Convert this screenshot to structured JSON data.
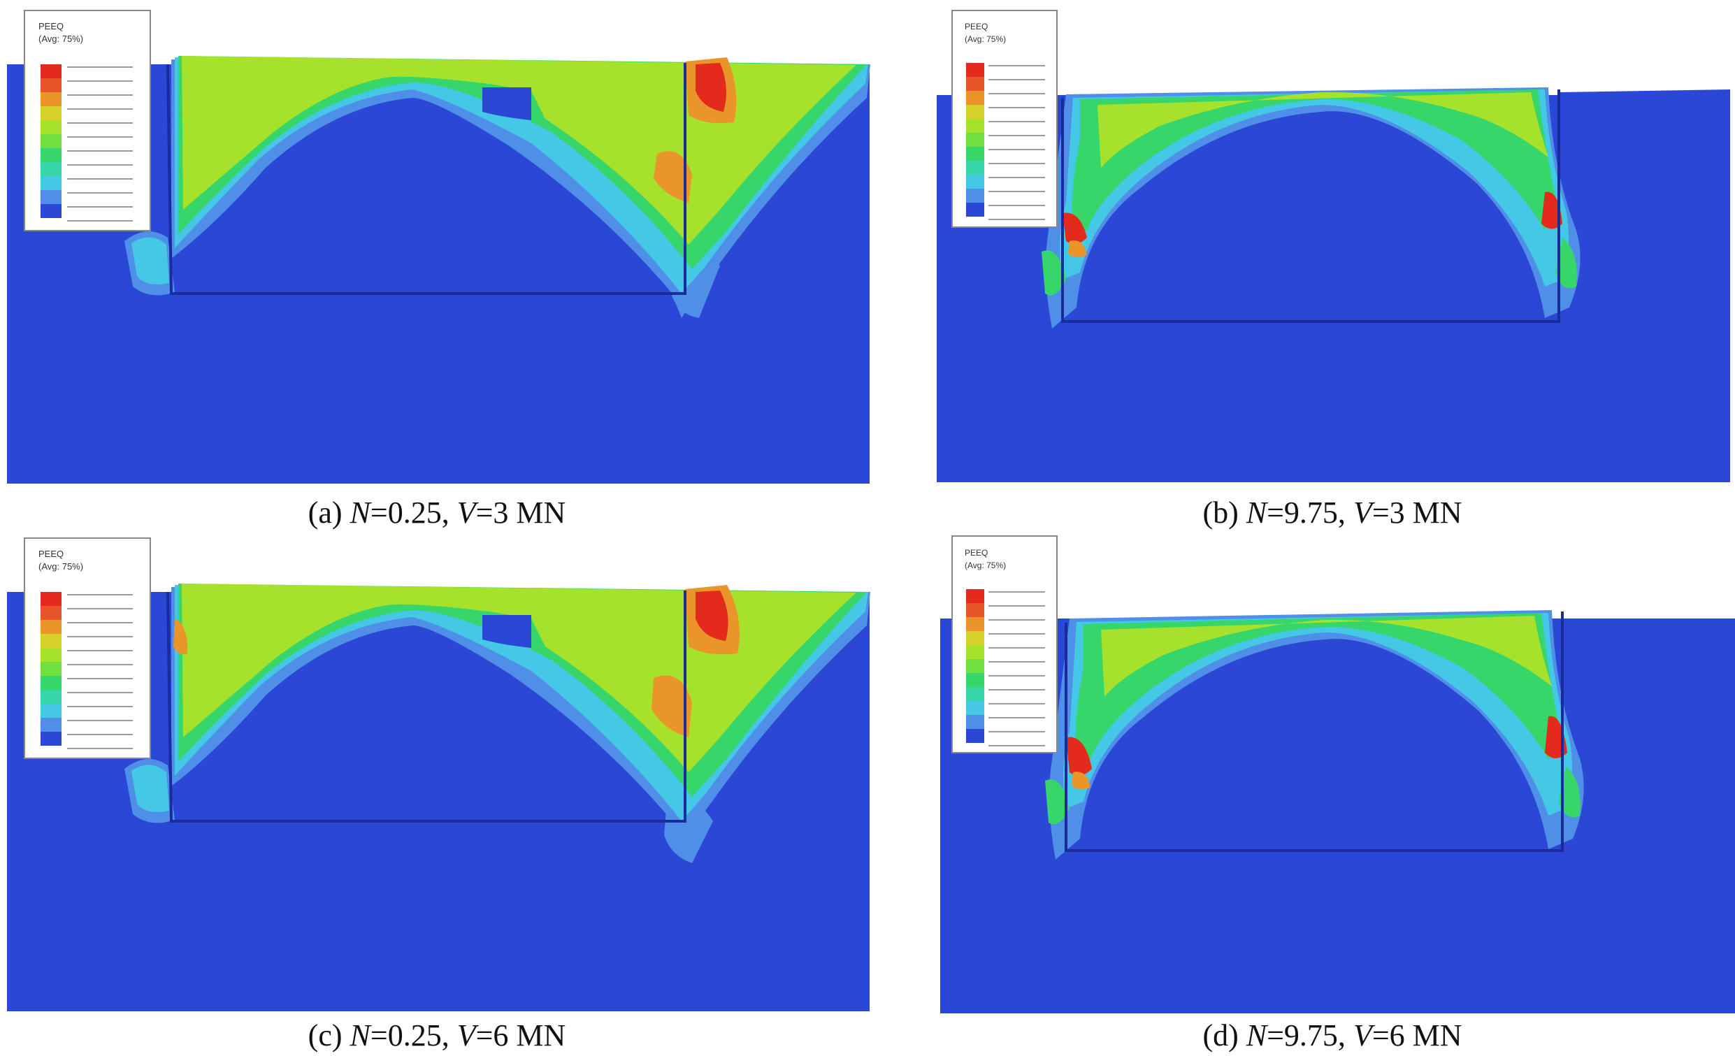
{
  "colors": {
    "soil_blue": "#2a47d6",
    "band_light_blue": "#4f8fe8",
    "band_cyan": "#44c8e6",
    "band_green": "#36d66a",
    "band_yellow_green": "#a6e22c",
    "band_orange": "#e9952a",
    "band_red": "#e32a1c"
  },
  "legend": {
    "heading_line1": "PEEQ",
    "heading_line2": "(Avg: 75%)"
  },
  "panels": [
    {
      "id": "a",
      "letter": "(a)",
      "n_label": "N",
      "n_value": "=0.25, ",
      "v_label": "V",
      "v_value": "=3 MN"
    },
    {
      "id": "b",
      "letter": "(b)",
      "n_label": "N",
      "n_value": "=9.75, ",
      "v_label": "V",
      "v_value": "=3 MN"
    },
    {
      "id": "c",
      "letter": "(c)",
      "n_label": "N",
      "n_value": "=0.25, ",
      "v_label": "V",
      "v_value": "=6 MN"
    },
    {
      "id": "d",
      "letter": "(d)",
      "n_label": "N",
      "n_value": "=9.75, ",
      "v_label": "V",
      "v_value": "=6 MN"
    }
  ]
}
